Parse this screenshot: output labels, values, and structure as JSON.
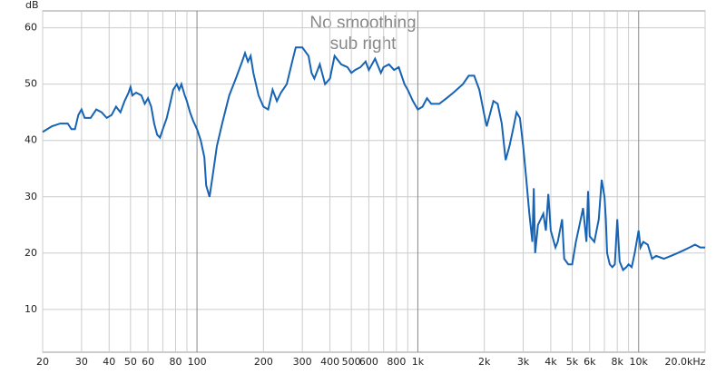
{
  "chart_data": {
    "type": "line",
    "title": "No smoothing",
    "subtitle": "sub right",
    "y_label": "dB",
    "log_x": true,
    "grid": true,
    "color": "#1763b4",
    "xlim": [
      20,
      20000
    ],
    "ylim": [
      2.4,
      63
    ],
    "yticks": [
      10,
      20,
      30,
      40,
      50,
      60
    ],
    "xticks": [
      20,
      30,
      40,
      50,
      60,
      80,
      100,
      200,
      300,
      400,
      500,
      600,
      800,
      {
        "value": 1000,
        "label": "1k"
      },
      {
        "value": 2000,
        "label": "2k"
      },
      {
        "value": 3000,
        "label": "3k"
      },
      {
        "value": 4000,
        "label": "4k"
      },
      {
        "value": 5000,
        "label": "5k"
      },
      {
        "value": 6000,
        "label": "6k"
      },
      {
        "value": 8000,
        "label": "8k"
      },
      {
        "value": 10000,
        "label": "10k"
      },
      {
        "value": 20000,
        "label": "20.0kHz"
      }
    ],
    "xminorticks": [
      70,
      90,
      700,
      900,
      7000,
      9000
    ],
    "x": [
      20,
      22,
      24,
      26,
      27,
      28,
      29,
      30,
      31,
      33,
      35,
      37,
      39,
      41,
      43,
      45,
      47,
      49,
      50,
      51,
      53,
      56,
      58,
      60,
      62,
      64,
      66,
      68,
      70,
      73,
      76,
      78,
      81,
      83,
      85,
      88,
      90,
      93,
      96,
      100,
      104,
      108,
      110,
      114,
      118,
      123,
      130,
      140,
      150,
      160,
      165,
      170,
      175,
      180,
      190,
      200,
      210,
      220,
      230,
      240,
      255,
      270,
      280,
      300,
      320,
      330,
      340,
      360,
      380,
      400,
      420,
      450,
      480,
      500,
      520,
      550,
      580,
      600,
      640,
      680,
      700,
      740,
      780,
      820,
      870,
      900,
      950,
      1000,
      1050,
      1100,
      1150,
      1250,
      1350,
      1450,
      1600,
      1700,
      1800,
      1900,
      2000,
      2050,
      2100,
      2200,
      2300,
      2400,
      2500,
      2600,
      2700,
      2800,
      2900,
      3000,
      3100,
      3200,
      3300,
      3350,
      3400,
      3500,
      3700,
      3800,
      3900,
      4000,
      4200,
      4300,
      4500,
      4600,
      4800,
      5000,
      5200,
      5400,
      5600,
      5800,
      5900,
      6000,
      6300,
      6600,
      6800,
      7000,
      7100,
      7200,
      7400,
      7600,
      7800,
      8000,
      8200,
      8500,
      8800,
      9000,
      9300,
      9600,
      10000,
      10200,
      10500,
      11000,
      11500,
      12000,
      13000,
      14000,
      15000,
      16000,
      17000,
      18000,
      19000,
      20000
    ],
    "values": [
      41.5,
      42.5,
      43,
      43,
      42,
      42,
      44.5,
      45.5,
      44,
      44,
      45.5,
      45,
      44,
      44.5,
      46,
      45,
      47,
      48.5,
      49.5,
      48,
      48.5,
      48,
      46.5,
      47.5,
      46,
      43,
      41,
      40.5,
      42,
      44,
      47,
      49,
      50,
      49,
      50,
      48,
      47,
      45,
      43.5,
      42,
      40,
      37,
      32,
      30,
      34,
      39,
      43,
      48,
      51,
      54,
      55.5,
      54,
      55,
      52,
      48,
      46,
      45.5,
      49,
      47,
      48.5,
      50,
      54,
      56.5,
      56.5,
      55,
      52,
      51,
      53.5,
      50,
      51,
      55,
      53.5,
      53,
      52,
      52.5,
      53,
      54,
      52.5,
      54.5,
      52,
      53,
      53.5,
      52.5,
      53,
      50,
      49,
      47,
      45.5,
      46,
      47.5,
      46.5,
      46.5,
      47.5,
      48.5,
      50,
      51.5,
      51.5,
      49,
      44.5,
      42.5,
      44,
      47,
      46.5,
      43,
      36.5,
      39,
      42,
      45,
      44,
      39,
      33,
      27,
      22,
      31.5,
      20,
      25,
      27,
      24,
      30.5,
      24,
      21,
      22,
      26,
      19,
      18,
      18,
      22,
      25,
      28,
      22,
      31,
      23,
      22,
      26,
      33,
      30,
      26,
      20,
      18,
      17.5,
      18,
      26,
      18.5,
      17,
      17.5,
      18,
      17.5,
      20,
      24,
      21,
      22,
      21.5,
      19,
      19.5,
      19,
      19.5,
      20,
      20.5,
      21,
      21.5,
      21,
      21
    ]
  }
}
